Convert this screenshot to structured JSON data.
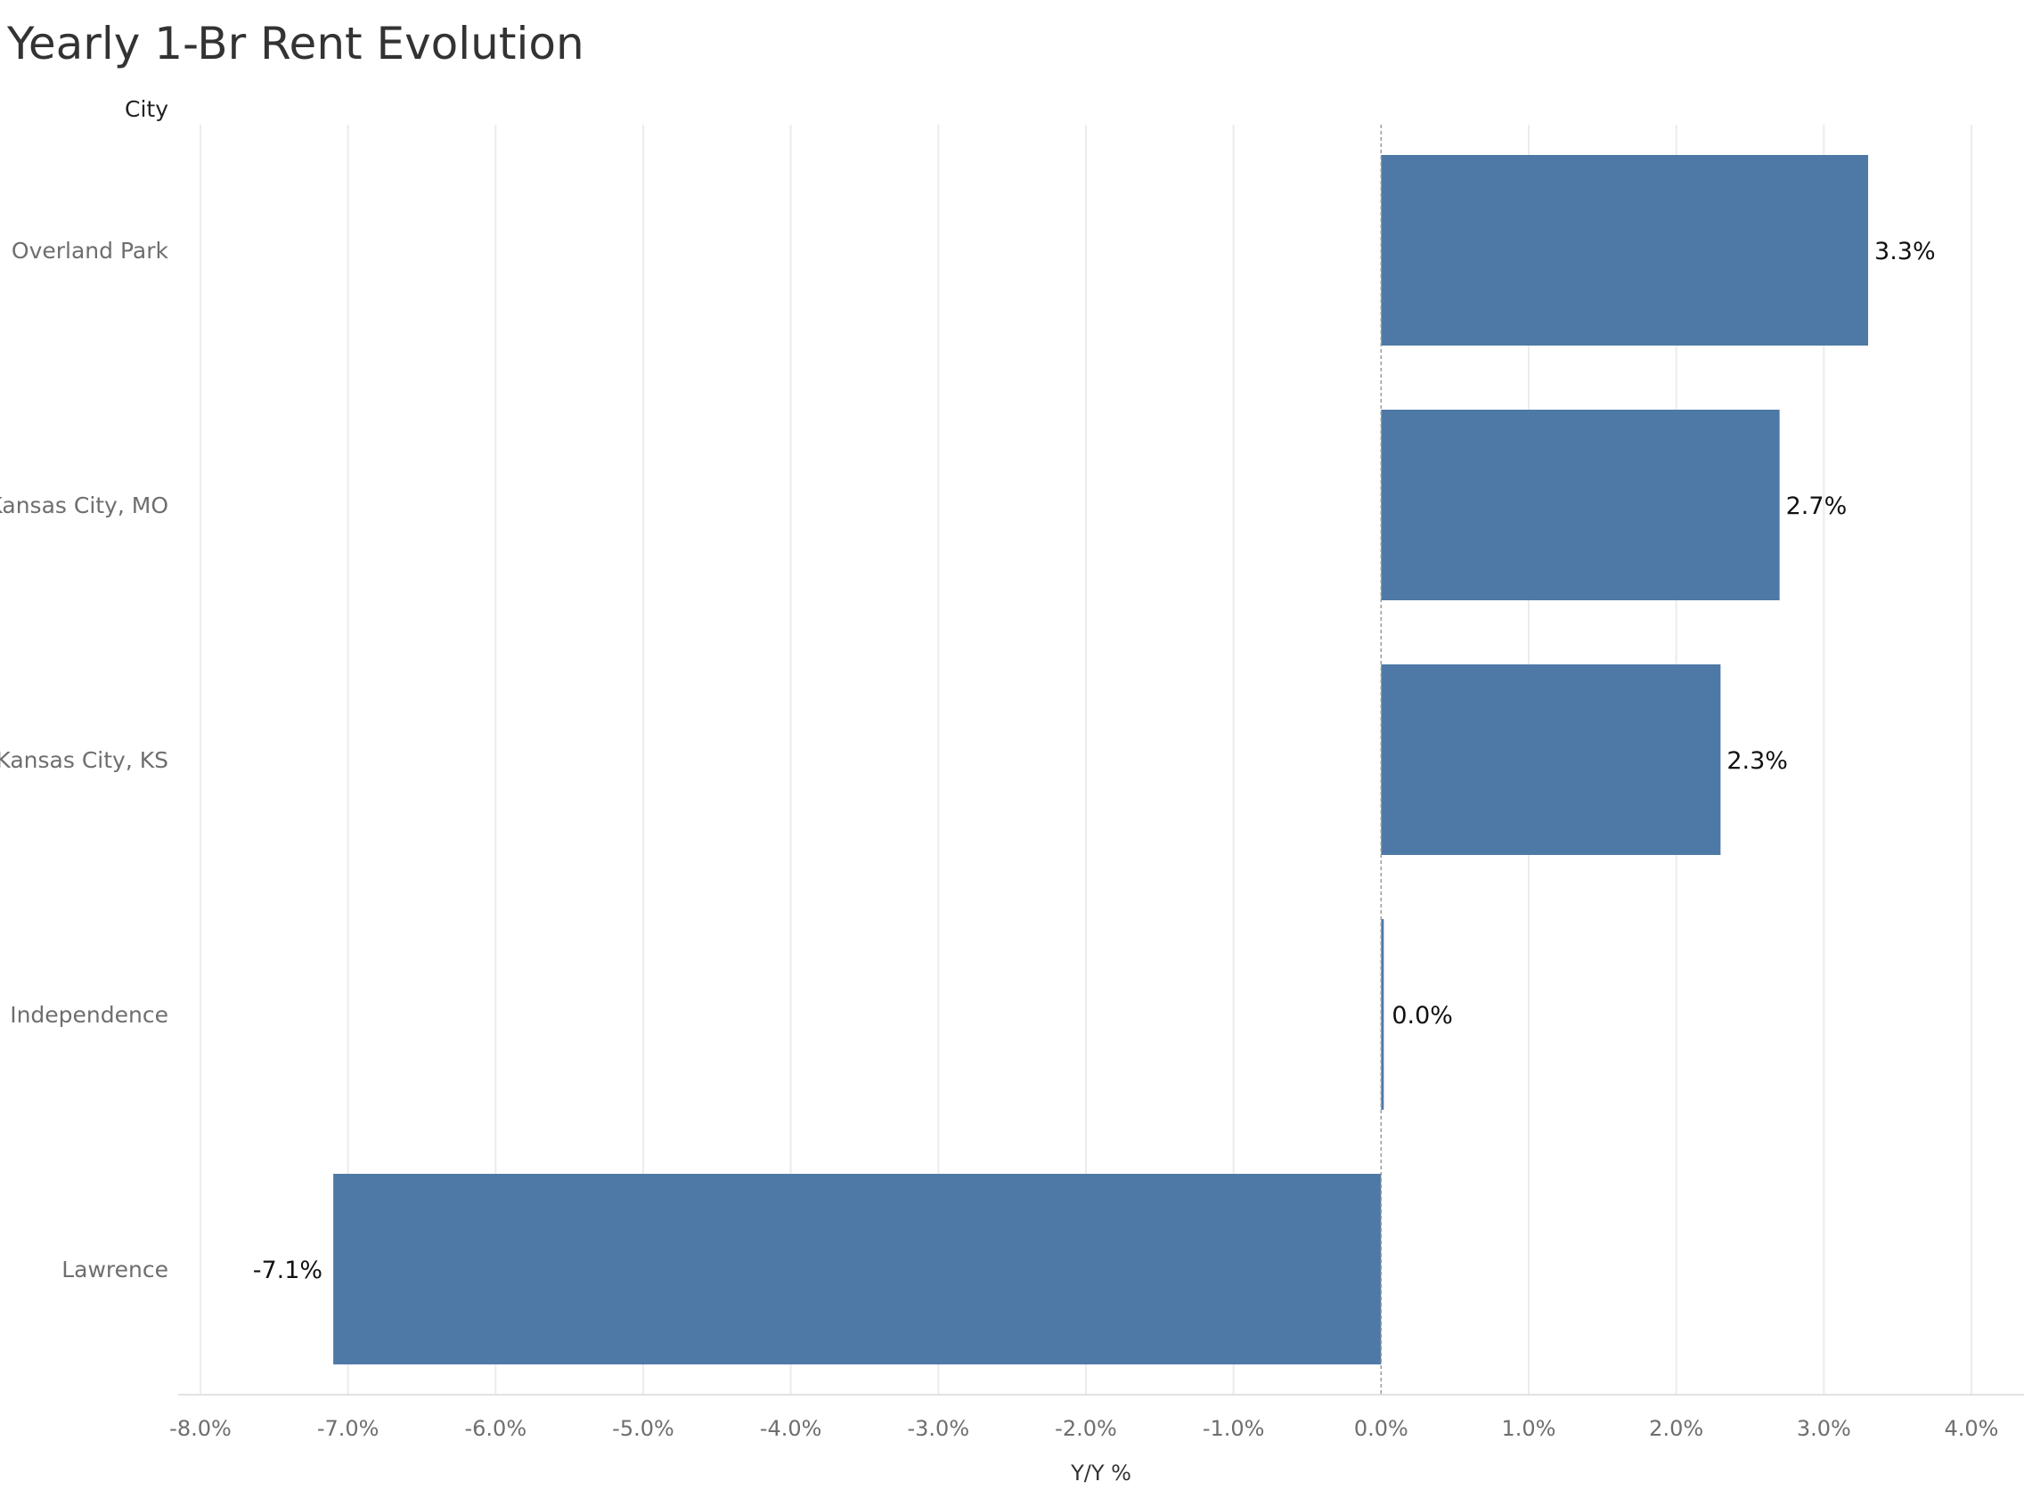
{
  "chart_data": {
    "type": "bar",
    "orientation": "horizontal",
    "title": "Yearly 1-Br Rent Evolution",
    "row_header": "City",
    "xlabel": "Y/Y %",
    "categories": [
      "Overland Park",
      "Kansas City, MO",
      "Kansas City, KS",
      "Independence",
      "Lawrence"
    ],
    "values": [
      3.3,
      2.7,
      2.3,
      0.0,
      -7.1
    ],
    "value_labels": [
      "3.3%",
      "2.7%",
      "2.3%",
      "0.0%",
      "-7.1%"
    ],
    "xlim": [
      -8.0,
      4.0
    ],
    "xticks": [
      -8,
      -7,
      -6,
      -5,
      -4,
      -3,
      -2,
      -1,
      0,
      1,
      2,
      3,
      4
    ],
    "xtick_labels": [
      "-8.0%",
      "-7.0%",
      "-6.0%",
      "-5.0%",
      "-4.0%",
      "-3.0%",
      "-2.0%",
      "-1.0%",
      "0.0%",
      "1.0%",
      "2.0%",
      "3.0%",
      "4.0%"
    ],
    "grid": "vertical",
    "legend": "none",
    "bar_color": "#4e79a7"
  }
}
